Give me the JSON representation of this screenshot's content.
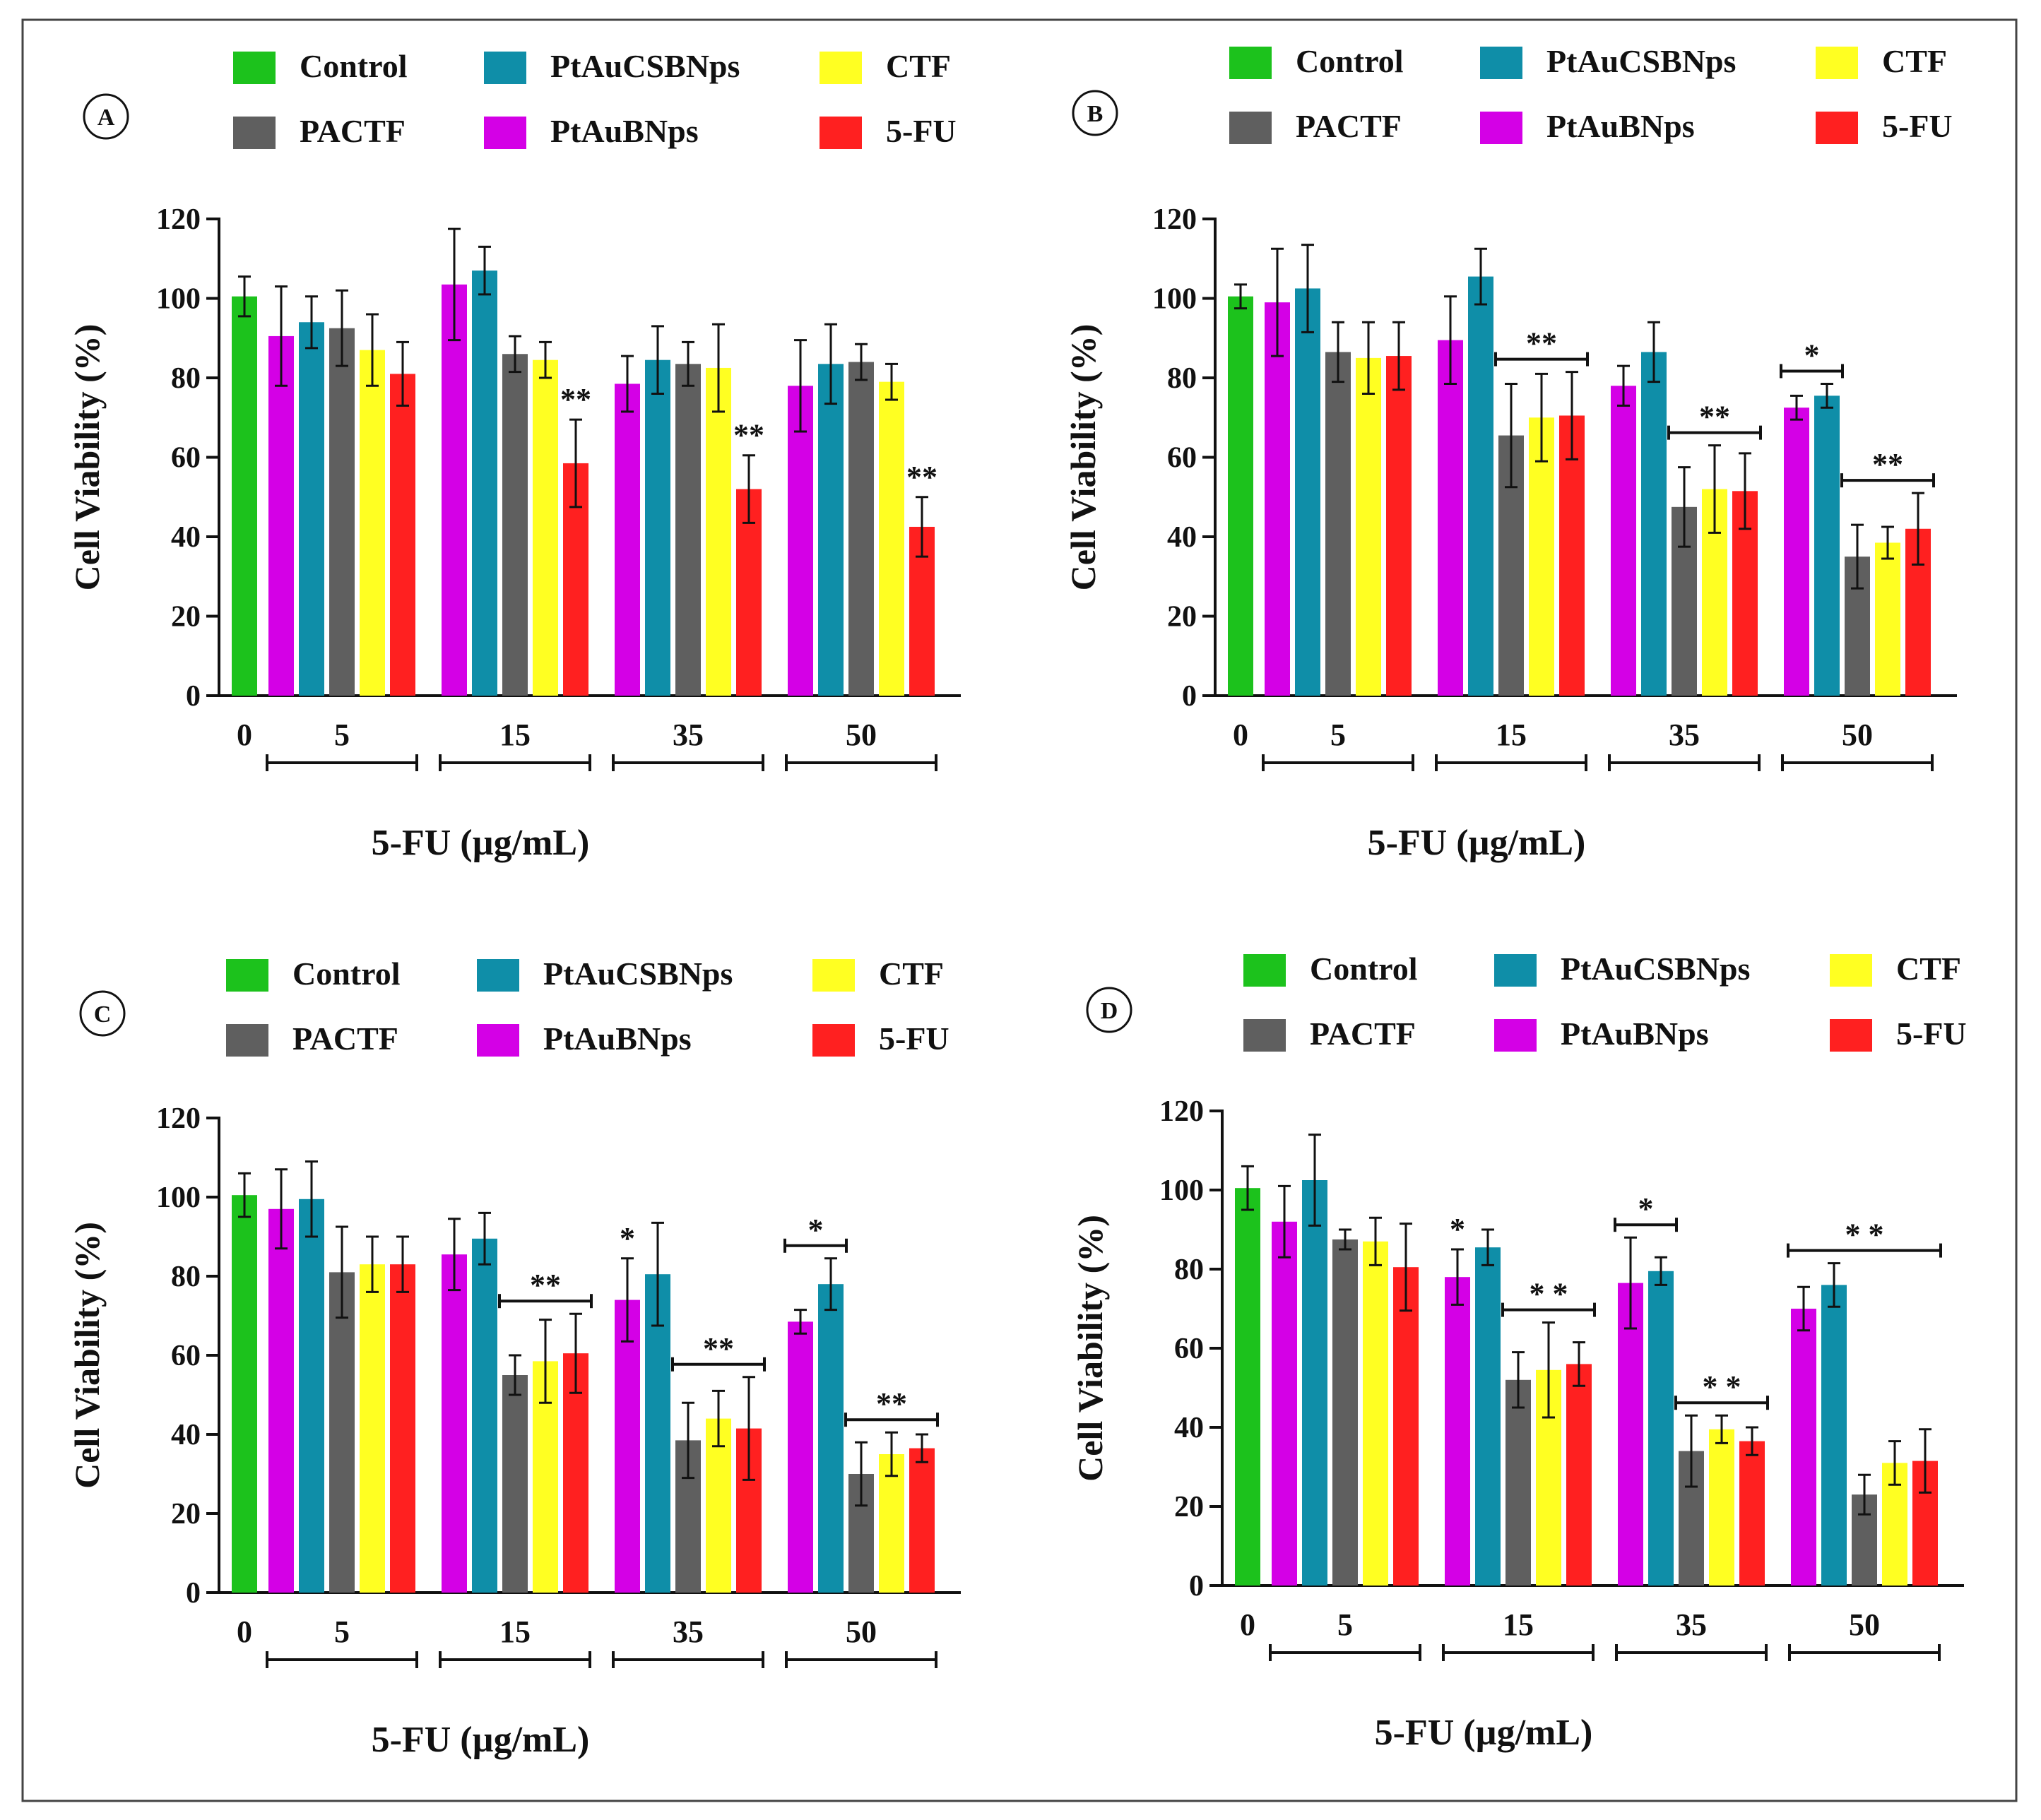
{
  "figure": {
    "legend_items": [
      {
        "name": "Control",
        "color": "#1cc21c"
      },
      {
        "name": "PtAuCSBNps",
        "color": "#0f8ea8"
      },
      {
        "name": "CTF",
        "color": "#ffff22"
      },
      {
        "name": "PACTF",
        "color": "#5f5f5f"
      },
      {
        "name": "PtAuBNps",
        "color": "#d400e6"
      },
      {
        "name": "5-FU",
        "color": "#ff2020"
      }
    ],
    "significance_marks": {
      "double": "**",
      "single": "*"
    }
  },
  "chart_data": [
    {
      "panel": "A",
      "type": "bar",
      "title": "",
      "xlabel": "5-FU (µg/mL)",
      "ylabel": "Cell Viability (%)",
      "ylim": [
        0,
        120
      ],
      "yticks": [
        "0",
        "20",
        "40",
        "60",
        "80",
        "100",
        "120"
      ],
      "groups": [
        "0",
        "5",
        "15",
        "35",
        "50"
      ],
      "control": {
        "value": 100.5,
        "err": 5
      },
      "series": [
        {
          "name": "PtAuBNps",
          "values": [
            90.5,
            103.5,
            78.5,
            78
          ],
          "errors": [
            12.5,
            14,
            7,
            11.5
          ]
        },
        {
          "name": "PtAuCSBNps",
          "values": [
            94,
            107,
            84.5,
            83.5
          ],
          "errors": [
            6.5,
            6,
            8.5,
            10
          ]
        },
        {
          "name": "PACTF",
          "values": [
            92.5,
            86,
            83.5,
            84
          ],
          "errors": [
            9.5,
            4.5,
            5.5,
            4.5
          ]
        },
        {
          "name": "CTF",
          "values": [
            87,
            84.5,
            82.5,
            79
          ],
          "errors": [
            9,
            4.5,
            11,
            4.5
          ]
        },
        {
          "name": "5-FU",
          "values": [
            81,
            58.5,
            52,
            42.5
          ],
          "errors": [
            8,
            11,
            8.5,
            7.5
          ]
        }
      ],
      "annotations": [
        {
          "group": 1,
          "series": [
            4
          ],
          "mark": "**"
        },
        {
          "group": 2,
          "series": [
            4
          ],
          "mark": "**"
        },
        {
          "group": 3,
          "series": [
            4
          ],
          "mark": "**"
        }
      ]
    },
    {
      "panel": "B",
      "type": "bar",
      "title": "",
      "xlabel": "5-FU (µg/mL)",
      "ylabel": "Cell Viability (%)",
      "ylim": [
        0,
        120
      ],
      "yticks": [
        "0",
        "20",
        "40",
        "60",
        "80",
        "100",
        "120"
      ],
      "groups": [
        "0",
        "5",
        "15",
        "35",
        "50"
      ],
      "control": {
        "value": 100.5,
        "err": 3
      },
      "series": [
        {
          "name": "PtAuBNps",
          "values": [
            99,
            89.5,
            78,
            72.5
          ],
          "errors": [
            13.5,
            11,
            5,
            3
          ]
        },
        {
          "name": "PtAuCSBNps",
          "values": [
            102.5,
            105.5,
            86.5,
            75.5
          ],
          "errors": [
            11,
            7,
            7.5,
            3
          ]
        },
        {
          "name": "PACTF",
          "values": [
            86.5,
            65.5,
            47.5,
            35
          ],
          "errors": [
            7.5,
            13,
            10,
            8
          ]
        },
        {
          "name": "CTF",
          "values": [
            85,
            70,
            52,
            38.5
          ],
          "errors": [
            9,
            11,
            11,
            4
          ]
        },
        {
          "name": "5-FU",
          "values": [
            85.5,
            70.5,
            51.5,
            42
          ],
          "errors": [
            8.5,
            11,
            9.5,
            9
          ]
        }
      ],
      "annotations": [
        {
          "group": 1,
          "series": [
            2,
            4
          ],
          "mark": "**"
        },
        {
          "group": 2,
          "series": [
            2,
            4
          ],
          "mark": "**"
        },
        {
          "group": 3,
          "series": [
            0,
            1
          ],
          "mark": "*"
        },
        {
          "group": 3,
          "series": [
            2,
            4
          ],
          "mark": "**"
        }
      ]
    },
    {
      "panel": "C",
      "type": "bar",
      "title": "",
      "xlabel": "5-FU (µg/mL)",
      "ylabel": "Cell Viability (%)",
      "ylim": [
        0,
        120
      ],
      "yticks": [
        "0",
        "20",
        "40",
        "60",
        "80",
        "100",
        "120"
      ],
      "groups": [
        "0",
        "5",
        "15",
        "35",
        "50"
      ],
      "control": {
        "value": 100.5,
        "err": 5.5
      },
      "series": [
        {
          "name": "PtAuBNps",
          "values": [
            97,
            85.5,
            74,
            68.5
          ],
          "errors": [
            10,
            9,
            10.5,
            3
          ]
        },
        {
          "name": "PtAuCSBNps",
          "values": [
            99.5,
            89.5,
            80.5,
            78
          ],
          "errors": [
            9.5,
            6.5,
            13,
            6.5
          ]
        },
        {
          "name": "PACTF",
          "values": [
            81,
            55,
            38.5,
            30
          ],
          "errors": [
            11.5,
            5,
            9.5,
            8
          ]
        },
        {
          "name": "CTF",
          "values": [
            83,
            58.5,
            44,
            35
          ],
          "errors": [
            7,
            10.5,
            7,
            5.5
          ]
        },
        {
          "name": "5-FU",
          "values": [
            83,
            60.5,
            41.5,
            36.5
          ],
          "errors": [
            7,
            10,
            13,
            3.5
          ]
        }
      ],
      "annotations": [
        {
          "group": 1,
          "series": [
            2,
            4
          ],
          "mark": "**"
        },
        {
          "group": 2,
          "series": [
            0
          ],
          "mark": "*"
        },
        {
          "group": 2,
          "series": [
            2,
            4
          ],
          "mark": "**"
        },
        {
          "group": 3,
          "series": [
            0,
            1
          ],
          "mark": "*"
        },
        {
          "group": 3,
          "series": [
            2,
            4
          ],
          "mark": "**"
        }
      ]
    },
    {
      "panel": "D",
      "type": "bar",
      "title": "",
      "xlabel": "5-FU (µg/mL)",
      "ylabel": "Cell Viability (%)",
      "ylim": [
        0,
        120
      ],
      "yticks": [
        "0",
        "20",
        "40",
        "60",
        "80",
        "100",
        "120"
      ],
      "groups": [
        "0",
        "5",
        "15",
        "35",
        "50"
      ],
      "control": {
        "value": 100.5,
        "err": 5.5
      },
      "series": [
        {
          "name": "PtAuBNps",
          "values": [
            92,
            78,
            76.5,
            70
          ],
          "errors": [
            9,
            7,
            11.5,
            5.5
          ]
        },
        {
          "name": "PtAuCSBNps",
          "values": [
            102.5,
            85.5,
            79.5,
            76
          ],
          "errors": [
            11.5,
            4.5,
            3.5,
            5.5
          ]
        },
        {
          "name": "PACTF",
          "values": [
            87.5,
            52,
            34,
            23
          ],
          "errors": [
            2.5,
            7,
            9,
            5
          ]
        },
        {
          "name": "CTF",
          "values": [
            87,
            54.5,
            39.5,
            31
          ],
          "errors": [
            6,
            12,
            3.5,
            5.5
          ]
        },
        {
          "name": "5-FU",
          "values": [
            80.5,
            56,
            36.5,
            31.5
          ],
          "errors": [
            11,
            5.5,
            3.5,
            8
          ]
        }
      ],
      "annotations": [
        {
          "group": 1,
          "series": [
            0
          ],
          "mark": "*"
        },
        {
          "group": 1,
          "series": [
            2,
            4
          ],
          "mark": "* *"
        },
        {
          "group": 2,
          "series": [
            0,
            1
          ],
          "mark": "*"
        },
        {
          "group": 2,
          "series": [
            2,
            4
          ],
          "mark": "* *"
        },
        {
          "group": 3,
          "series": [
            0,
            4
          ],
          "mark": "* *"
        }
      ]
    }
  ]
}
